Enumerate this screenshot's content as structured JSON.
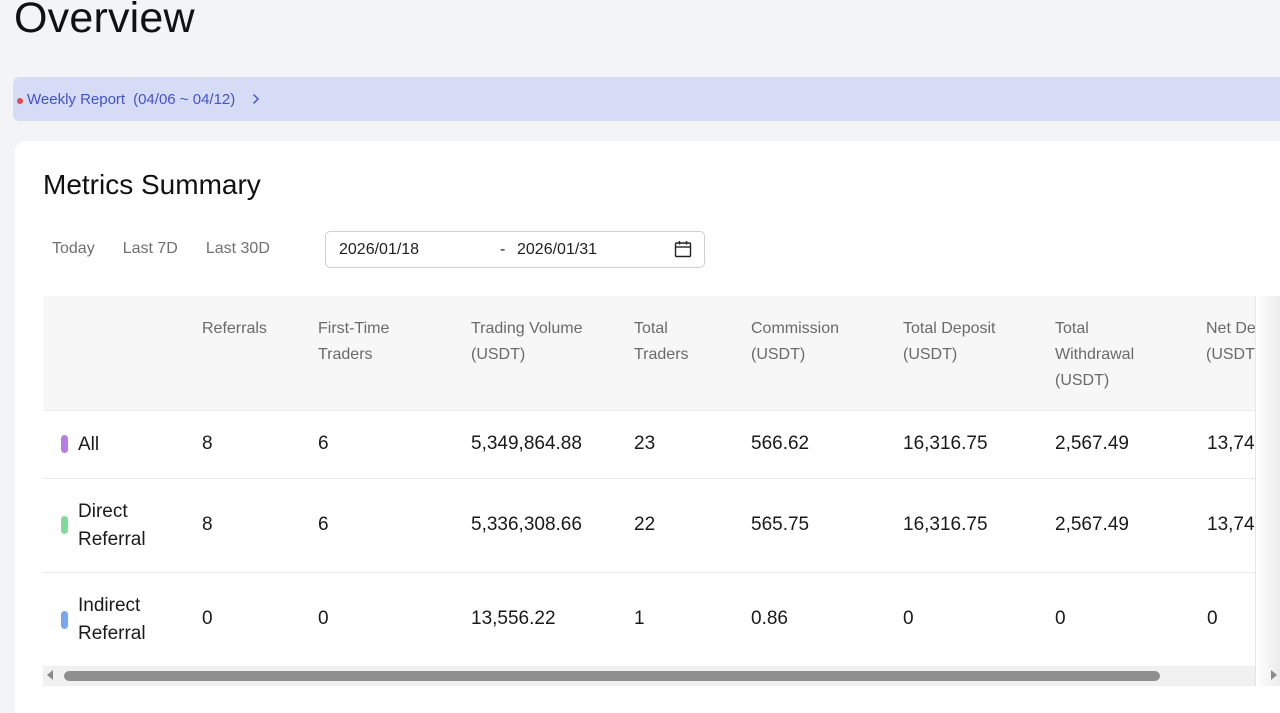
{
  "page": {
    "title": "Overview"
  },
  "banner": {
    "label": "Weekly Report",
    "range": "(04/06 ~ 04/12)",
    "chevron_icon": "chevron-right-icon"
  },
  "metrics": {
    "title": "Metrics Summary",
    "filters": [
      "Today",
      "Last 7D",
      "Last 30D"
    ],
    "date_range": {
      "start": "2026/01/18",
      "separator": "-",
      "end": "2026/01/31",
      "icon": "calendar-icon"
    }
  },
  "table": {
    "columns": [
      "Referrals",
      "First-Time Traders",
      "Trading Volume (USDT)",
      "Total Traders",
      "Commission (USDT)",
      "Total Deposit (USDT)",
      "Total Withdrawal (USDT)",
      "Net De (USDT"
    ],
    "rows": [
      {
        "label": "All",
        "color": "#b77ce8",
        "cells": [
          "8",
          "6",
          "5,349,864.88",
          "23",
          "566.62",
          "16,316.75",
          "2,567.49",
          "13,74"
        ]
      },
      {
        "label": "Direct Referral",
        "color": "#7fd99a",
        "cells": [
          "8",
          "6",
          "5,336,308.66",
          "22",
          "565.75",
          "16,316.75",
          "2,567.49",
          "13,74"
        ]
      },
      {
        "label": "Indirect Referral",
        "color": "#79a6f0",
        "cells": [
          "0",
          "0",
          "13,556.22",
          "1",
          "0.86",
          "0",
          "0",
          "0"
        ]
      }
    ]
  }
}
